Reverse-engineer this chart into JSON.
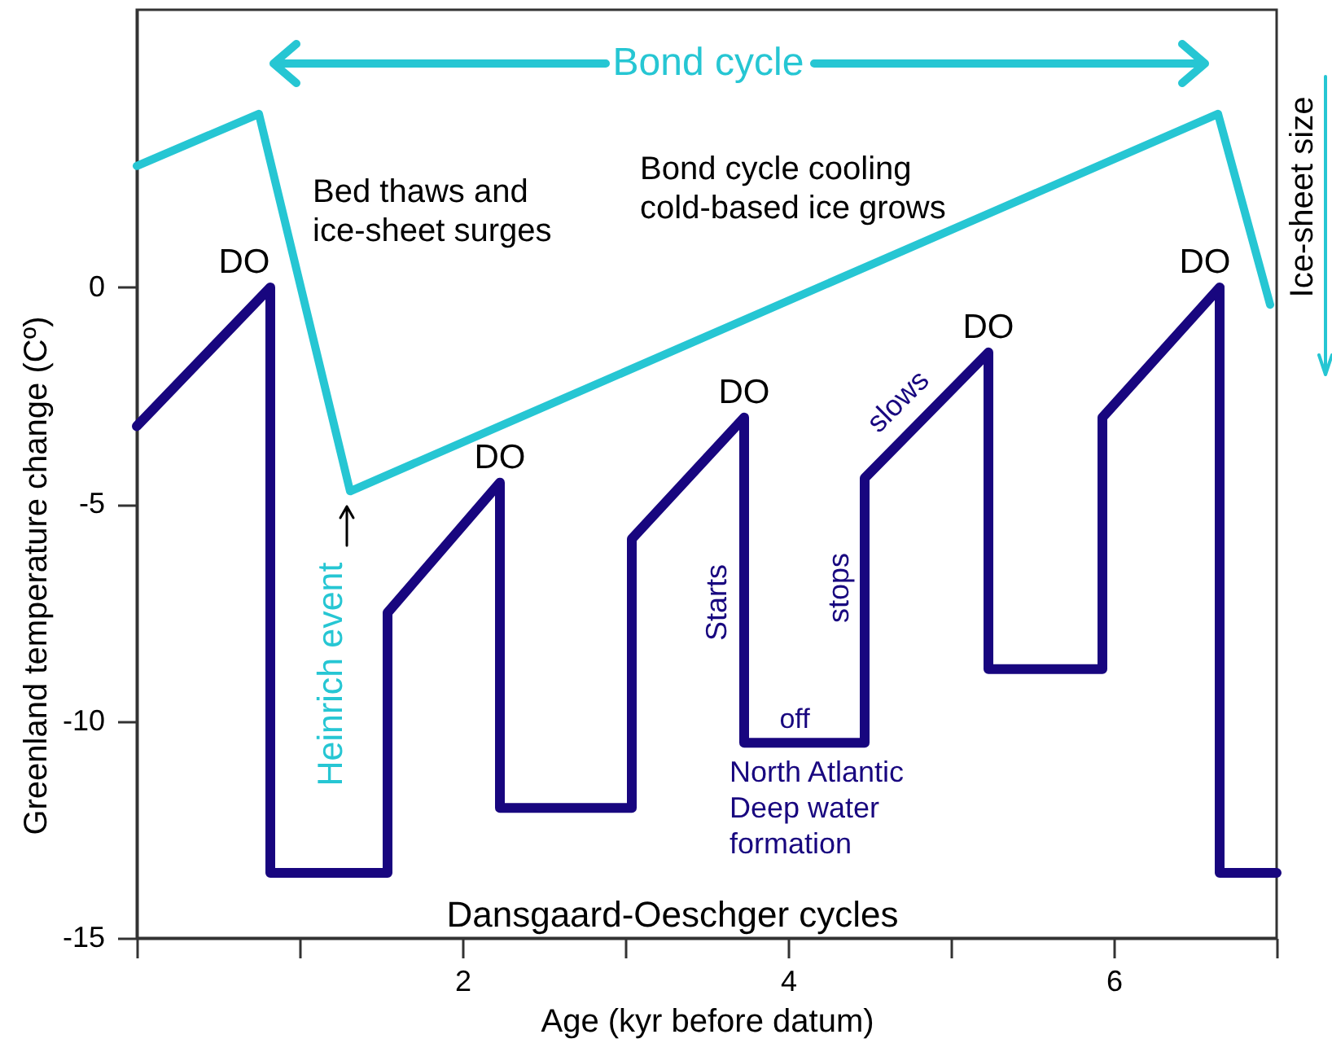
{
  "chart_data": {
    "type": "line",
    "xlabel": "Age (kyr before datum)",
    "ylabel": "Greenland temperature change (Cº)",
    "xlim": [
      0,
      7
    ],
    "ylim": [
      -15,
      6.4
    ],
    "xticks": [
      {
        "value": 0,
        "label": null
      },
      {
        "value": 1,
        "label": null
      },
      2,
      {
        "value": 3,
        "label": null
      },
      4,
      {
        "value": 5,
        "label": null
      },
      6,
      {
        "value": 7,
        "label": null
      }
    ],
    "yticks": [
      -15,
      -10,
      -5,
      0
    ],
    "grid": false,
    "series": [
      {
        "color": "#18067f",
        "x": [
          0,
          0.82,
          0.82,
          1.54,
          1.54,
          2.23,
          2.23,
          3.04,
          3.04,
          3.73,
          3.73,
          4.47,
          4.47,
          5.23,
          5.23,
          5.93,
          5.93,
          6.65,
          6.65,
          7
        ],
        "values": [
          -3.2,
          0,
          -13.5,
          -13.5,
          -7.5,
          -4.5,
          -12,
          -12,
          -5.8,
          -3,
          -10.5,
          -10.5,
          -4.4,
          -1.5,
          -8.8,
          -8.8,
          -3,
          0,
          -13.5,
          -13.5
        ]
      },
      {
        "color": "#26c6d3",
        "x": [
          0,
          0.75,
          1.31,
          6.64,
          6.96
        ],
        "values": [
          2.8,
          4.0,
          -4.7,
          4.0,
          -0.4
        ]
      }
    ],
    "annotations": [
      "Bond cycle",
      "Bed thaws and\nice-sheet surges",
      "Bond cycle cooling\ncold-based ice grows",
      {
        "text": "DO",
        "x": 0.82,
        "y": 0
      },
      {
        "text": "DO",
        "x": 2.23,
        "y": -4.5
      },
      {
        "text": "DO",
        "x": 3.73,
        "y": -3
      },
      {
        "text": "DO",
        "x": 5.23,
        "y": -1.5
      },
      {
        "text": "DO",
        "x": 6.65,
        "y": 0
      },
      "Heinrich event",
      "Starts",
      "stops",
      "slows",
      "off",
      "North Atlantic\nDeep water\nformation",
      "Dansgaard-Oeschger cycles",
      "Ice-sheet size"
    ]
  }
}
